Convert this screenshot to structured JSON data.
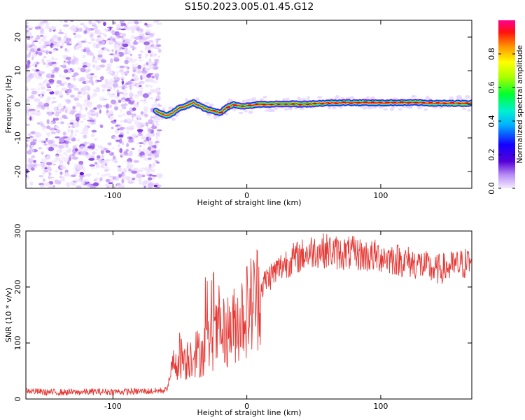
{
  "title": "S150.2023.005.01.45.G12",
  "chart_data": [
    {
      "type": "heatmap",
      "xlabel": "Height of straight line (km)",
      "ylabel": "Frequency (Hz)",
      "xlim": [
        -165,
        168
      ],
      "ylim": [
        -25,
        25
      ],
      "xticks": [
        -100,
        0,
        100
      ],
      "yticks": [
        -20,
        -10,
        0,
        10,
        20
      ],
      "colorbar": {
        "label": "Normalized spectral amplitude",
        "range": [
          0,
          1
        ],
        "ticks": [
          "0.0",
          "0.2",
          "0.4",
          "0.6",
          "0.8"
        ]
      },
      "noise_region_x": [
        -165,
        -68
      ],
      "ridge": {
        "x": [
          -68,
          -60,
          -55,
          -50,
          -45,
          -40,
          -35,
          -30,
          -25,
          -20,
          -15,
          -10,
          -5,
          0,
          10,
          20,
          30,
          40,
          50,
          60,
          70,
          80,
          90,
          100,
          110,
          120,
          130,
          140,
          150,
          160,
          168
        ],
        "y": [
          -2.0,
          -3.5,
          -2.5,
          -1.0,
          -0.5,
          0.5,
          -0.5,
          -1.5,
          -2.0,
          -2.5,
          -1.0,
          0.0,
          -0.5,
          -0.5,
          0.0,
          0.0,
          0.2,
          0.0,
          0.2,
          0.4,
          0.5,
          0.5,
          0.5,
          0.4,
          0.5,
          0.5,
          0.5,
          0.3,
          0.3,
          0.3,
          0.3
        ]
      }
    },
    {
      "type": "line",
      "xlabel": "Height of straight line (km)",
      "ylabel": "SNR (10 * v/v)",
      "xlim": [
        -165,
        168
      ],
      "ylim": [
        0,
        300
      ],
      "xticks": [
        -100,
        0,
        100
      ],
      "yticks": [
        0,
        100,
        200,
        300
      ],
      "series": [
        {
          "color": "#e53935",
          "x": [
            -165,
            -150,
            -130,
            -110,
            -90,
            -70,
            -60,
            -55,
            -50,
            -45,
            -40,
            -35,
            -30,
            -25,
            -20,
            -15,
            -10,
            -5,
            0,
            5,
            10,
            15,
            20,
            25,
            30,
            40,
            50,
            60,
            70,
            80,
            90,
            100,
            110,
            120,
            130,
            140,
            150,
            160,
            168
          ],
          "values": [
            15,
            12,
            12,
            13,
            13,
            14,
            16,
            60,
            80,
            70,
            85,
            80,
            95,
            110,
            115,
            120,
            130,
            145,
            160,
            175,
            195,
            215,
            225,
            235,
            245,
            255,
            265,
            265,
            260,
            260,
            255,
            255,
            250,
            245,
            240,
            230,
            235,
            240,
            245
          ]
        }
      ]
    }
  ]
}
